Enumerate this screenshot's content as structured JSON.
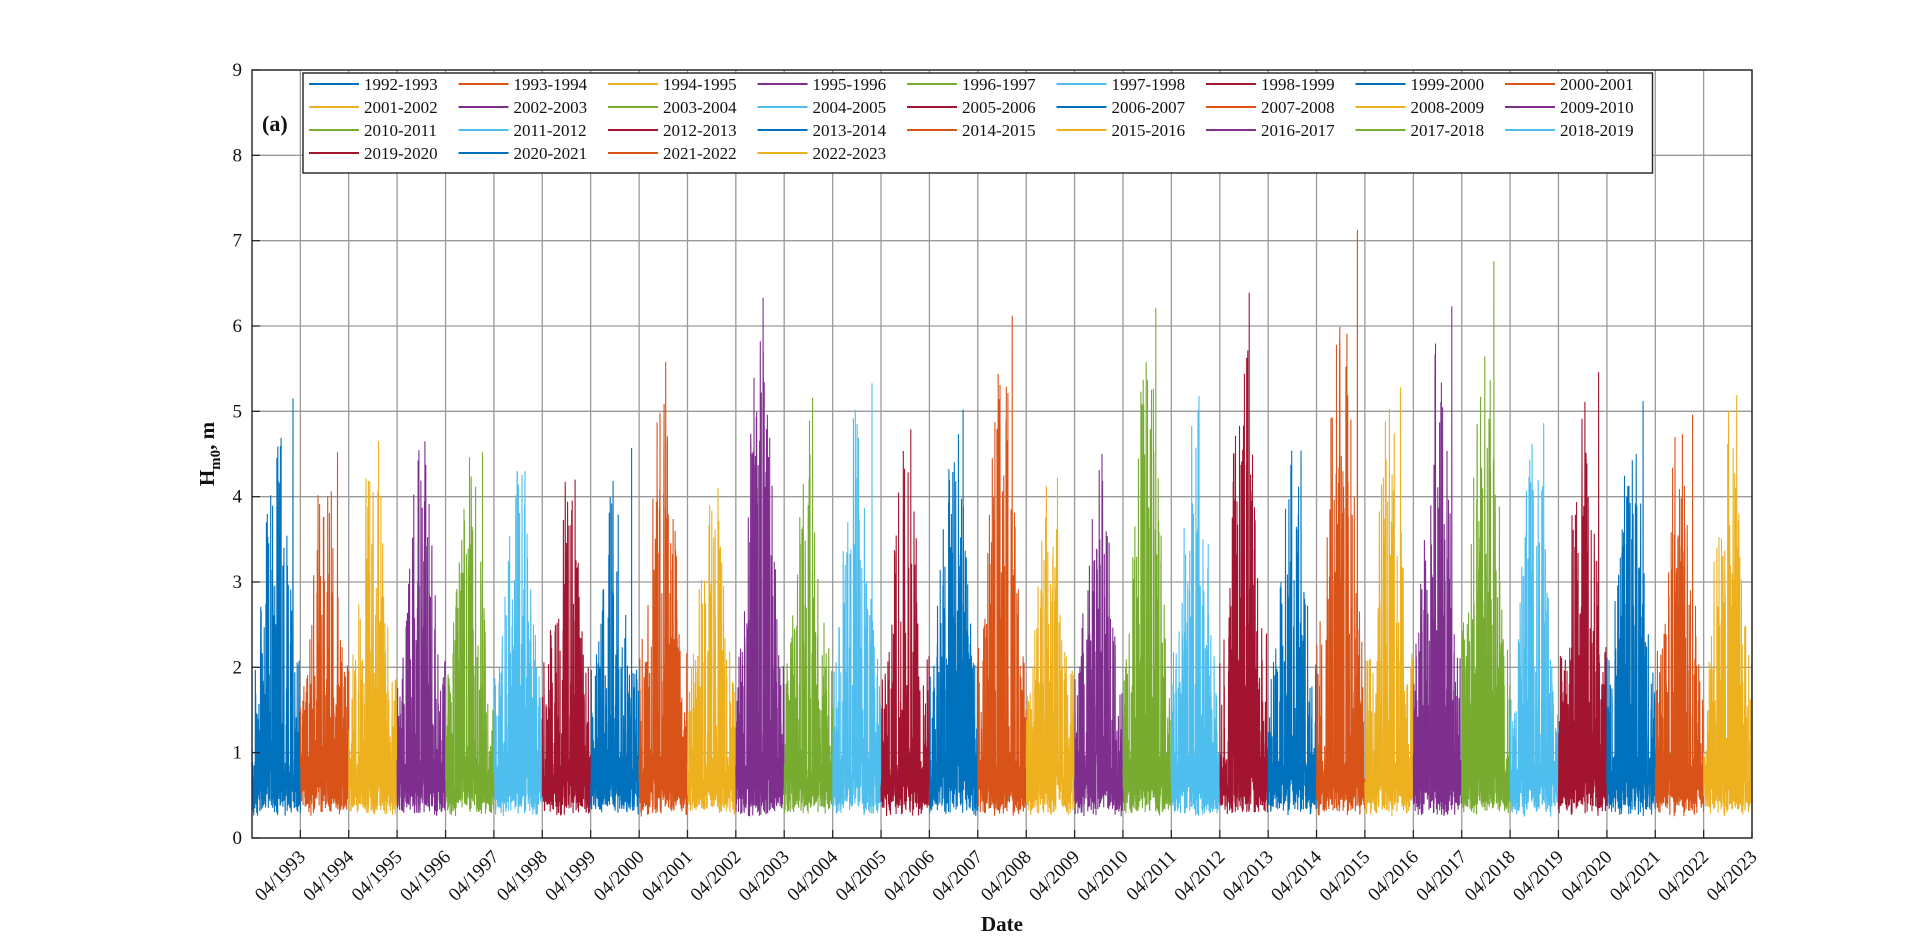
{
  "chart_data": {
    "type": "line",
    "panel_label": "(a)",
    "xlabel": "Date",
    "ylabel_main": "H",
    "ylabel_sub": "m0",
    "ylabel_tail": ", m",
    "ylim": [
      0,
      9
    ],
    "yticks": [
      0,
      1,
      2,
      3,
      4,
      5,
      6,
      7,
      8,
      9
    ],
    "xlim": [
      "1992-04-01",
      "2023-04-01"
    ],
    "xtick_labels": [
      "04/1993",
      "04/1994",
      "04/1995",
      "04/1996",
      "04/1997",
      "04/1998",
      "04/1999",
      "04/2000",
      "04/2001",
      "04/2002",
      "04/2003",
      "04/2004",
      "04/2005",
      "04/2006",
      "04/2007",
      "04/2008",
      "04/2009",
      "04/2010",
      "04/2011",
      "04/2012",
      "04/2013",
      "04/2014",
      "04/2015",
      "04/2016",
      "04/2017",
      "04/2018",
      "04/2019",
      "04/2020",
      "04/2021",
      "04/2022",
      "04/2023"
    ],
    "grid": true,
    "legend_position": "top",
    "legend_columns": 9,
    "series_palette": [
      "#0072BD",
      "#D95319",
      "#EDB120",
      "#7E2F8E",
      "#77AC30",
      "#4DBEEE",
      "#A2142F"
    ],
    "series": [
      {
        "name": "1992-1993",
        "max": 5.15
      },
      {
        "name": "1993-1994",
        "max": 4.52
      },
      {
        "name": "1994-1995",
        "max": 4.65
      },
      {
        "name": "1995-1996",
        "max": 4.65
      },
      {
        "name": "1996-1997",
        "max": 4.52
      },
      {
        "name": "1997-1998",
        "max": 4.3
      },
      {
        "name": "1998-1999",
        "max": 4.2
      },
      {
        "name": "1999-2000",
        "max": 4.57
      },
      {
        "name": "2000-2001",
        "max": 5.58
      },
      {
        "name": "2001-2002",
        "max": 4.1
      },
      {
        "name": "2002-2003",
        "max": 6.33
      },
      {
        "name": "2003-2004",
        "max": 5.16
      },
      {
        "name": "2004-2005",
        "max": 5.33
      },
      {
        "name": "2005-2006",
        "max": 4.79
      },
      {
        "name": "2006-2007",
        "max": 5.02
      },
      {
        "name": "2007-2008",
        "max": 6.12
      },
      {
        "name": "2008-2009",
        "max": 4.22
      },
      {
        "name": "2009-2010",
        "max": 4.5
      },
      {
        "name": "2010-2011",
        "max": 6.21
      },
      {
        "name": "2011-2012",
        "max": 5.18
      },
      {
        "name": "2012-2013",
        "max": 6.39
      },
      {
        "name": "2013-2014",
        "max": 4.54
      },
      {
        "name": "2014-2015",
        "max": 7.13
      },
      {
        "name": "2015-2016",
        "max": 5.28
      },
      {
        "name": "2016-2017",
        "max": 6.23
      },
      {
        "name": "2017-2018",
        "max": 6.76
      },
      {
        "name": "2018-2019",
        "max": 4.86
      },
      {
        "name": "2019-2020",
        "max": 5.46
      },
      {
        "name": "2020-2021",
        "max": 5.12
      },
      {
        "name": "2021-2022",
        "max": 4.96
      },
      {
        "name": "2022-2023",
        "max": 5.19
      }
    ]
  }
}
